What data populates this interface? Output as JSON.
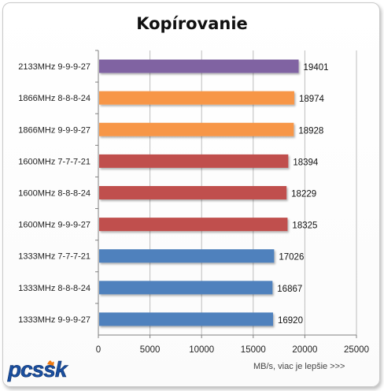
{
  "chart_data": {
    "type": "bar",
    "orientation": "horizontal",
    "title": "Kopírovanie",
    "categories": [
      "2133MHz 9-9-9-27",
      "1866MHz 8-8-8-24",
      "1866MHz 9-9-9-27",
      "1600MHz 7-7-7-21",
      "1600MHz 8-8-8-24",
      "1600MHz 9-9-9-27",
      "1333MHz 7-7-7-21",
      "1333MHz 8-8-8-24",
      "1333MHz 9-9-9-27"
    ],
    "values": [
      19401,
      18974,
      18928,
      18394,
      18229,
      18325,
      17026,
      16867,
      16920
    ],
    "bar_colors": [
      "#8064a2",
      "#f79646",
      "#f79646",
      "#c0504d",
      "#c0504d",
      "#c0504d",
      "#4f81bd",
      "#4f81bd",
      "#4f81bd"
    ],
    "xlim": [
      0,
      25000
    ],
    "xticks": [
      0,
      5000,
      10000,
      15000,
      20000,
      25000
    ],
    "xlabel": "MB/s, viac je lepšie >>>",
    "grid": true
  },
  "logo_text": "pcssk",
  "colors": {
    "grid": "#bdbdbd",
    "axis": "#808080",
    "logo_fill": "#1a4fa0"
  }
}
